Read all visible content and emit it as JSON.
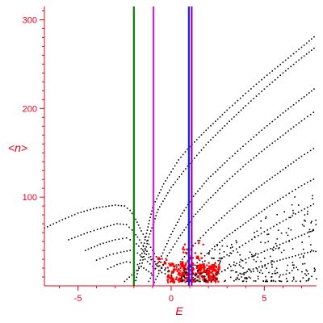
{
  "chart_data": {
    "type": "scatter",
    "xlabel": "E",
    "ylabel": "<n>",
    "xlim": [
      -6.8,
      7.8
    ],
    "ylim": [
      0,
      315
    ],
    "x_ticks": [
      {
        "value": -5,
        "label": "-5"
      },
      {
        "value": 0,
        "label": "0"
      },
      {
        "value": 5,
        "label": "5"
      }
    ],
    "y_ticks": [
      {
        "value": 100,
        "label": "100"
      },
      {
        "value": 200,
        "label": "200"
      },
      {
        "value": 300,
        "label": "300"
      }
    ],
    "grid": false,
    "colors": {
      "axis": "#e8001a",
      "black_points": "#000000",
      "red_points": "#ff0000",
      "line_green": "#008000",
      "line_magenta": "#e020e0",
      "line_blue": "#1a1aff",
      "line_purple": "#9000d0"
    },
    "vertical_lines": [
      {
        "x": -2.0,
        "color": "#008000"
      },
      {
        "x": -0.95,
        "color": "#e020e0"
      },
      {
        "x": 0.95,
        "color": "#1a1aff"
      },
      {
        "x": 1.1,
        "color": "#9000d0"
      }
    ],
    "series": [
      {
        "color": "#000000",
        "points": [
          [
            -6.8,
            65
          ],
          [
            -6.0,
            73
          ],
          [
            -5.0,
            82
          ],
          [
            -4.0,
            88
          ],
          [
            -3.0,
            91
          ],
          [
            -2.5,
            90
          ],
          [
            -2.2,
            85
          ],
          [
            -1.9,
            75
          ],
          [
            -1.6,
            62
          ],
          [
            -1.2,
            47
          ],
          [
            -0.8,
            33
          ],
          [
            -0.3,
            20
          ],
          [
            0.2,
            12
          ]
        ]
      },
      {
        "color": "#000000",
        "points": [
          [
            -5.5,
            52
          ],
          [
            -4.5,
            60
          ],
          [
            -3.6,
            66
          ],
          [
            -2.9,
            70
          ],
          [
            -2.4,
            69
          ],
          [
            -2.1,
            63
          ],
          [
            -1.8,
            55
          ],
          [
            -1.4,
            42
          ],
          [
            -1.0,
            30
          ],
          [
            -0.5,
            20
          ],
          [
            0.2,
            12
          ]
        ]
      },
      {
        "color": "#000000",
        "points": [
          [
            -4.6,
            40
          ],
          [
            -3.8,
            47
          ],
          [
            -3.0,
            52
          ],
          [
            -2.4,
            54
          ],
          [
            -2.0,
            50
          ],
          [
            -1.6,
            42
          ],
          [
            -1.2,
            32
          ],
          [
            -0.7,
            22
          ],
          [
            0.0,
            14
          ]
        ]
      },
      {
        "color": "#000000",
        "points": [
          [
            -4.0,
            29
          ],
          [
            -3.3,
            35
          ],
          [
            -2.7,
            38
          ],
          [
            -2.2,
            40
          ],
          [
            -1.8,
            37
          ],
          [
            -1.4,
            30
          ],
          [
            -1.0,
            22
          ],
          [
            -0.5,
            15
          ],
          [
            0.2,
            10
          ]
        ]
      },
      {
        "color": "#000000",
        "points": [
          [
            -3.4,
            19
          ],
          [
            -2.9,
            24
          ],
          [
            -2.4,
            27
          ],
          [
            -2.0,
            26
          ],
          [
            -1.6,
            22
          ],
          [
            -1.2,
            16
          ],
          [
            -0.8,
            11
          ]
        ]
      },
      {
        "color": "#000000",
        "points": [
          [
            -1.9,
            6
          ],
          [
            -1.4,
            52
          ],
          [
            -1.0,
            88
          ],
          [
            -0.4,
            115
          ],
          [
            0.4,
            142
          ],
          [
            1.0,
            157
          ],
          [
            2,
            178
          ],
          [
            3,
            198
          ],
          [
            4,
            217
          ],
          [
            5,
            235
          ],
          [
            6,
            252
          ],
          [
            7,
            269
          ],
          [
            7.8,
            283
          ]
        ]
      },
      {
        "color": "#000000",
        "points": [
          [
            -2.5,
            5
          ],
          [
            -1.6,
            22
          ],
          [
            -1.2,
            55
          ],
          [
            -0.7,
            86
          ],
          [
            0,
            111
          ],
          [
            1,
            138
          ],
          [
            2,
            162
          ],
          [
            3,
            183
          ],
          [
            4,
            203
          ],
          [
            5,
            222
          ],
          [
            6,
            240
          ],
          [
            7,
            257
          ],
          [
            7.8,
            270
          ]
        ]
      },
      {
        "color": "#000000",
        "points": [
          [
            -1.2,
            5
          ],
          [
            -0.6,
            30
          ],
          [
            0,
            58
          ],
          [
            0.6,
            82
          ],
          [
            1.2,
            101
          ],
          [
            2,
            121
          ],
          [
            3,
            141
          ],
          [
            4,
            160
          ],
          [
            5,
            178
          ],
          [
            6,
            195
          ],
          [
            7,
            211
          ],
          [
            7.8,
            224
          ]
        ]
      },
      {
        "color": "#000000",
        "points": [
          [
            -0.9,
            4
          ],
          [
            -0.2,
            34
          ],
          [
            0.5,
            57
          ],
          [
            1.2,
            78
          ],
          [
            2,
            97
          ],
          [
            3,
            118
          ],
          [
            4,
            137
          ],
          [
            5,
            154
          ],
          [
            6,
            170
          ],
          [
            7,
            186
          ],
          [
            7.8,
            198
          ]
        ]
      },
      {
        "color": "#000000",
        "points": [
          [
            -0.2,
            6
          ],
          [
            0.6,
            30
          ],
          [
            1.3,
            48
          ],
          [
            2,
            63
          ],
          [
            3,
            82
          ],
          [
            4,
            100
          ],
          [
            5,
            116
          ],
          [
            6,
            131
          ],
          [
            7,
            146
          ],
          [
            7.8,
            157
          ]
        ]
      },
      {
        "color": "#000000",
        "points": [
          [
            0.6,
            7
          ],
          [
            1.4,
            26
          ],
          [
            2.2,
            42
          ],
          [
            3,
            56
          ],
          [
            4,
            71
          ],
          [
            5,
            86
          ],
          [
            6,
            100
          ],
          [
            7,
            113
          ],
          [
            7.8,
            122
          ]
        ]
      },
      {
        "color": "#000000",
        "points": [
          [
            1.4,
            10
          ],
          [
            2.2,
            24
          ],
          [
            3,
            35
          ],
          [
            4,
            48
          ],
          [
            5,
            61
          ],
          [
            6,
            73
          ],
          [
            7,
            85
          ],
          [
            7.8,
            94
          ]
        ]
      },
      {
        "color": "#000000",
        "points": [
          [
            2.4,
            12
          ],
          [
            3.2,
            22
          ],
          [
            4,
            30
          ],
          [
            5,
            39
          ],
          [
            6,
            48
          ],
          [
            7,
            57
          ],
          [
            7.8,
            64
          ]
        ]
      },
      {
        "color": "#000000",
        "points": [
          [
            3.6,
            12
          ],
          [
            4.4,
            19
          ],
          [
            5.2,
            25
          ],
          [
            6,
            30
          ],
          [
            7,
            36
          ],
          [
            7.8,
            40
          ]
        ]
      }
    ],
    "clusters": [
      {
        "color": "#ff0000",
        "x_range": [
          -0.2,
          2.6
        ],
        "y_range": [
          4,
          26
        ],
        "count": 260
      },
      {
        "color": "#ff0000",
        "x_range": [
          0.6,
          1.8
        ],
        "y_range": [
          26,
          52
        ],
        "count": 28
      },
      {
        "color": "#ff0000",
        "x_range": [
          -0.7,
          -0.1
        ],
        "y_range": [
          20,
          34
        ],
        "count": 6
      },
      {
        "color": "#000000",
        "x_range": [
          0.5,
          7.8
        ],
        "y_range": [
          5,
          110
        ],
        "count": 300
      }
    ]
  }
}
